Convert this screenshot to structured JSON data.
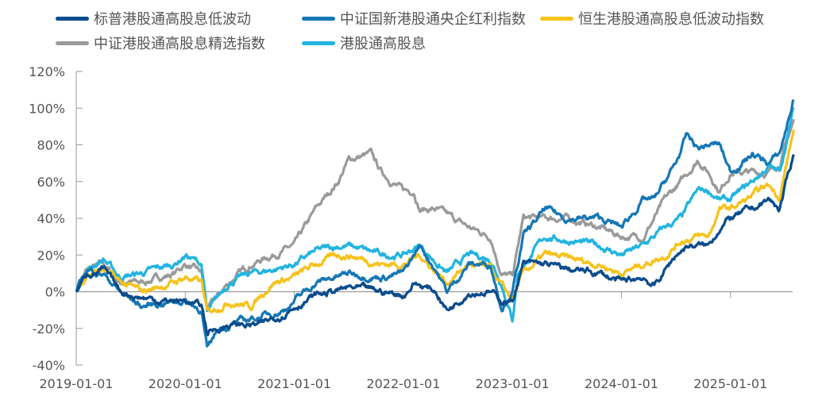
{
  "chart_data": {
    "type": "line",
    "title": "",
    "xlabel": "",
    "ylabel": "",
    "ylim": [
      -40,
      120
    ],
    "yticks": [
      "120%",
      "100%",
      "80%",
      "60%",
      "40%",
      "20%",
      "0%",
      "-20%",
      "-40%"
    ],
    "ytick_values": [
      120,
      100,
      80,
      60,
      40,
      20,
      0,
      -20,
      -40
    ],
    "xticks": [
      "2019-01-01",
      "2020-01-01",
      "2021-01-01",
      "2022-01-01",
      "2023-01-01",
      "2024-01-01",
      "2025-01-01"
    ],
    "x_unit": "years since 2019-01-01",
    "xlim": [
      0,
      6.58
    ],
    "legend_placement": "top",
    "series": [
      {
        "name": "中证港股通高股息精选指数",
        "color": "#9a9a9a",
        "points": [
          [
            0,
            0
          ],
          [
            0.1,
            12
          ],
          [
            0.25,
            15
          ],
          [
            0.4,
            5
          ],
          [
            0.6,
            5
          ],
          [
            0.9,
            10
          ],
          [
            1.0,
            15
          ],
          [
            1.15,
            10
          ],
          [
            1.2,
            -10
          ],
          [
            1.4,
            5
          ],
          [
            1.6,
            15
          ],
          [
            1.8,
            20
          ],
          [
            2.0,
            25
          ],
          [
            2.2,
            45
          ],
          [
            2.4,
            60
          ],
          [
            2.5,
            72
          ],
          [
            2.7,
            75
          ],
          [
            2.8,
            65
          ],
          [
            3.0,
            55
          ],
          [
            3.1,
            55
          ],
          [
            3.15,
            45
          ],
          [
            3.3,
            45
          ],
          [
            3.6,
            35
          ],
          [
            3.8,
            30
          ],
          [
            3.9,
            10
          ],
          [
            4.0,
            8
          ],
          [
            4.1,
            40
          ],
          [
            4.3,
            40
          ],
          [
            4.5,
            40
          ],
          [
            4.8,
            35
          ],
          [
            5.0,
            30
          ],
          [
            5.2,
            30
          ],
          [
            5.4,
            50
          ],
          [
            5.55,
            60
          ],
          [
            5.7,
            72
          ],
          [
            5.8,
            65
          ],
          [
            5.9,
            55
          ],
          [
            6.0,
            65
          ],
          [
            6.2,
            65
          ],
          [
            6.35,
            65
          ],
          [
            6.45,
            70
          ],
          [
            6.58,
            93
          ]
        ]
      },
      {
        "name": "港股通高股息",
        "color": "#22b4e0",
        "points": [
          [
            0,
            0
          ],
          [
            0.1,
            12
          ],
          [
            0.25,
            18
          ],
          [
            0.4,
            8
          ],
          [
            0.6,
            10
          ],
          [
            0.9,
            15
          ],
          [
            1.0,
            20
          ],
          [
            1.15,
            15
          ],
          [
            1.2,
            -12
          ],
          [
            1.4,
            5
          ],
          [
            1.6,
            10
          ],
          [
            1.8,
            12
          ],
          [
            2.0,
            15
          ],
          [
            2.2,
            22
          ],
          [
            2.4,
            25
          ],
          [
            2.5,
            25
          ],
          [
            2.8,
            20
          ],
          [
            3.0,
            20
          ],
          [
            3.15,
            25
          ],
          [
            3.4,
            10
          ],
          [
            3.6,
            20
          ],
          [
            3.8,
            18
          ],
          [
            3.9,
            5
          ],
          [
            4.0,
            -15
          ],
          [
            4.05,
            10
          ],
          [
            4.3,
            30
          ],
          [
            4.5,
            28
          ],
          [
            4.8,
            25
          ],
          [
            5.0,
            20
          ],
          [
            5.2,
            25
          ],
          [
            5.4,
            35
          ],
          [
            5.55,
            40
          ],
          [
            5.7,
            55
          ],
          [
            5.8,
            55
          ],
          [
            5.9,
            50
          ],
          [
            6.0,
            50
          ],
          [
            6.2,
            60
          ],
          [
            6.35,
            68
          ],
          [
            6.45,
            65
          ],
          [
            6.58,
            100
          ]
        ]
      },
      {
        "name": "恒生港股通高股息低波动指数",
        "color": "#f7c21a",
        "points": [
          [
            0,
            0
          ],
          [
            0.1,
            10
          ],
          [
            0.25,
            12
          ],
          [
            0.4,
            5
          ],
          [
            0.6,
            0
          ],
          [
            0.9,
            5
          ],
          [
            1.0,
            8
          ],
          [
            1.15,
            5
          ],
          [
            1.2,
            -12
          ],
          [
            1.4,
            -5
          ],
          [
            1.6,
            -8
          ],
          [
            1.8,
            5
          ],
          [
            2.0,
            8
          ],
          [
            2.2,
            15
          ],
          [
            2.4,
            20
          ],
          [
            2.5,
            20
          ],
          [
            2.8,
            15
          ],
          [
            3.0,
            15
          ],
          [
            3.15,
            20
          ],
          [
            3.4,
            5
          ],
          [
            3.6,
            15
          ],
          [
            3.8,
            12
          ],
          [
            3.9,
            3
          ],
          [
            4.0,
            -5
          ],
          [
            4.1,
            10
          ],
          [
            4.3,
            20
          ],
          [
            4.5,
            18
          ],
          [
            4.8,
            15
          ],
          [
            5.0,
            10
          ],
          [
            5.2,
            15
          ],
          [
            5.4,
            20
          ],
          [
            5.55,
            28
          ],
          [
            5.7,
            30
          ],
          [
            5.8,
            30
          ],
          [
            5.9,
            45
          ],
          [
            6.0,
            45
          ],
          [
            6.2,
            52
          ],
          [
            6.35,
            58
          ],
          [
            6.45,
            52
          ],
          [
            6.58,
            88
          ]
        ]
      },
      {
        "name": "中证国新港股通央企红利指数",
        "color": "#1577b5",
        "points": [
          [
            0,
            0
          ],
          [
            0.1,
            12
          ],
          [
            0.25,
            10
          ],
          [
            0.4,
            0
          ],
          [
            0.6,
            -8
          ],
          [
            0.9,
            -5
          ],
          [
            1.0,
            -5
          ],
          [
            1.15,
            -10
          ],
          [
            1.2,
            -32
          ],
          [
            1.3,
            -20
          ],
          [
            1.6,
            -15
          ],
          [
            1.9,
            -10
          ],
          [
            2.0,
            -5
          ],
          [
            2.2,
            5
          ],
          [
            2.5,
            10
          ],
          [
            2.8,
            8
          ],
          [
            3.0,
            10
          ],
          [
            3.15,
            25
          ],
          [
            3.3,
            12
          ],
          [
            3.4,
            0
          ],
          [
            3.6,
            15
          ],
          [
            3.8,
            15
          ],
          [
            3.9,
            -8
          ],
          [
            4.0,
            0
          ],
          [
            4.1,
            30
          ],
          [
            4.3,
            45
          ],
          [
            4.5,
            40
          ],
          [
            4.8,
            40
          ],
          [
            5.0,
            35
          ],
          [
            5.2,
            50
          ],
          [
            5.3,
            50
          ],
          [
            5.5,
            70
          ],
          [
            5.6,
            85
          ],
          [
            5.7,
            78
          ],
          [
            5.8,
            80
          ],
          [
            5.9,
            80
          ],
          [
            6.0,
            65
          ],
          [
            6.2,
            75
          ],
          [
            6.35,
            70
          ],
          [
            6.45,
            75
          ],
          [
            6.58,
            105
          ]
        ]
      },
      {
        "name": "标普港股通高股息低波动",
        "color": "#0b4c8c",
        "points": [
          [
            0,
            0
          ],
          [
            0.1,
            10
          ],
          [
            0.25,
            12
          ],
          [
            0.4,
            0
          ],
          [
            0.6,
            -3
          ],
          [
            0.8,
            -5
          ],
          [
            1.0,
            -5
          ],
          [
            1.15,
            -8
          ],
          [
            1.2,
            -22
          ],
          [
            1.4,
            -18
          ],
          [
            1.7,
            -18
          ],
          [
            1.9,
            -12
          ],
          [
            2.0,
            -8
          ],
          [
            2.2,
            -2
          ],
          [
            2.5,
            2
          ],
          [
            2.8,
            0
          ],
          [
            3.0,
            -2
          ],
          [
            3.1,
            5
          ],
          [
            3.3,
            0
          ],
          [
            3.4,
            -10
          ],
          [
            3.6,
            0
          ],
          [
            3.8,
            0
          ],
          [
            3.9,
            -5
          ],
          [
            4.0,
            -5
          ],
          [
            4.1,
            15
          ],
          [
            4.3,
            15
          ],
          [
            4.5,
            12
          ],
          [
            4.8,
            10
          ],
          [
            5.0,
            5
          ],
          [
            5.2,
            8
          ],
          [
            5.3,
            3
          ],
          [
            5.5,
            20
          ],
          [
            5.6,
            25
          ],
          [
            5.8,
            25
          ],
          [
            5.9,
            35
          ],
          [
            6.0,
            40
          ],
          [
            6.2,
            45
          ],
          [
            6.35,
            50
          ],
          [
            6.45,
            45
          ],
          [
            6.58,
            75
          ]
        ]
      }
    ]
  },
  "legend": [
    {
      "label": "标普港股通高股息低波动",
      "color": "#0b4c8c"
    },
    {
      "label": "中证国新港股通央企红利指数",
      "color": "#1577b5"
    },
    {
      "label": "恒生港股通高股息低波动指数",
      "color": "#f7c21a"
    },
    {
      "label": "中证港股通高股息精选指数",
      "color": "#9a9a9a"
    },
    {
      "label": "港股通高股息",
      "color": "#22b4e0"
    }
  ]
}
